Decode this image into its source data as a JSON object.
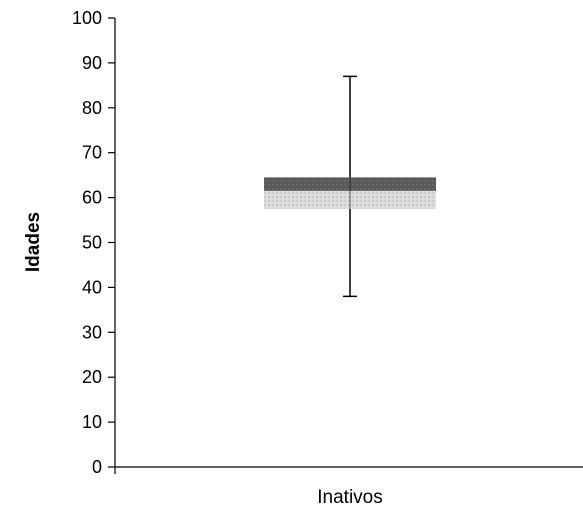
{
  "chart_data": {
    "type": "box",
    "ylabel": "Idades",
    "xlabel": "Inativos",
    "ylim": [
      0,
      100
    ],
    "yticks": [
      "0",
      "10",
      "20",
      "30",
      "40",
      "50",
      "60",
      "70",
      "80",
      "90",
      "100"
    ],
    "categories": [
      "Inativos"
    ],
    "boxes": [
      {
        "category": "Inativos",
        "min": 38,
        "q1": 57.5,
        "median": 61.5,
        "q3": 64.5,
        "max": 87
      }
    ],
    "grid": false,
    "colors": {
      "upper_box": "#5a5a5a",
      "lower_box": "#d2d2d2",
      "axis": "#000000"
    }
  }
}
